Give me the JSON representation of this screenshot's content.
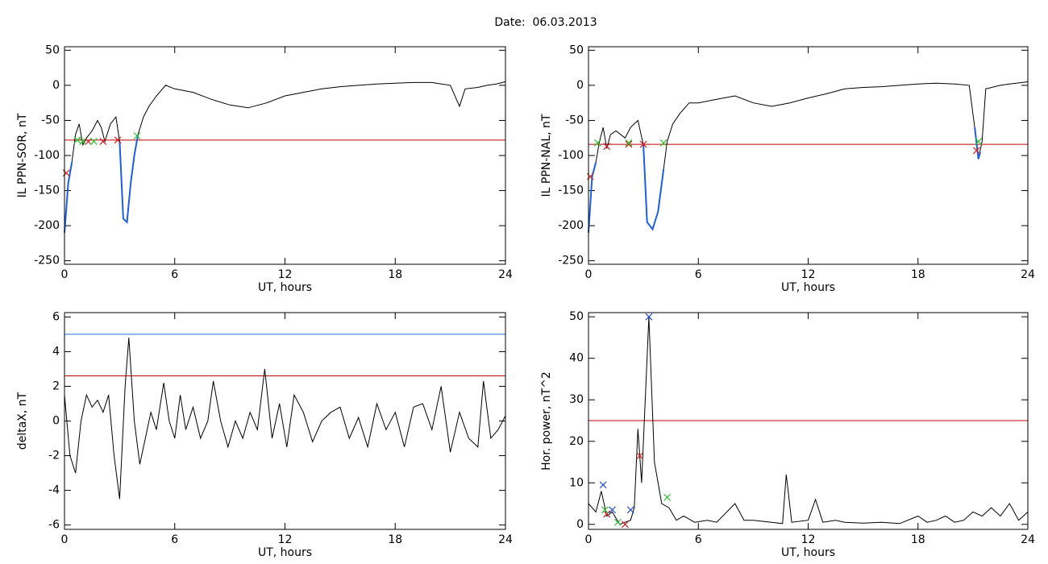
{
  "title": "Date:  06.03.2013",
  "chart_data": [
    {
      "type": "line",
      "xlabel": "UT, hours",
      "ylabel": "IL PPN-SOR, nT",
      "xlim": [
        0,
        24
      ],
      "xticks": [
        0,
        6,
        12,
        18,
        24
      ],
      "ylim": [
        -255,
        55
      ],
      "yticks": [
        -250,
        -200,
        -150,
        -100,
        -50,
        0,
        50
      ],
      "hlines": [
        {
          "value": -78,
          "color": "#c00000"
        }
      ],
      "series": [
        {
          "style": "line",
          "color": "#000000",
          "x": [
            0,
            0.2,
            0.4,
            0.6,
            0.8,
            1.0,
            1.2,
            1.5,
            1.8,
            2.0,
            2.2,
            2.5,
            2.8,
            3.0,
            3.2,
            3.4,
            3.6,
            3.8,
            4.0,
            4.3,
            4.6,
            5.0,
            5.5,
            6,
            7,
            8,
            9,
            10,
            11,
            12,
            13,
            14,
            15,
            16,
            17,
            18,
            19,
            20,
            21,
            21.5,
            21.8,
            22.5,
            23,
            23.5,
            24
          ],
          "values": [
            -210,
            -140,
            -110,
            -70,
            -55,
            -85,
            -75,
            -65,
            -50,
            -60,
            -80,
            -55,
            -45,
            -80,
            -190,
            -195,
            -140,
            -100,
            -70,
            -45,
            -30,
            -15,
            0,
            -5,
            -10,
            -20,
            -28,
            -32,
            -25,
            -15,
            -10,
            -5,
            -2,
            0,
            2,
            3,
            4,
            4,
            0,
            -30,
            -5,
            -3,
            0,
            2,
            5
          ]
        },
        {
          "style": "line",
          "color": "#1f5fd0",
          "x": [
            0,
            0.2,
            0.4,
            null,
            3.0,
            3.2,
            3.4,
            3.6,
            3.8,
            4.0
          ],
          "values": [
            -210,
            -140,
            -110,
            null,
            -80,
            -190,
            -195,
            -140,
            -100,
            -70
          ]
        },
        {
          "style": "marker",
          "color": "#d02020",
          "x": [
            0.1,
            1.3,
            2.1,
            2.9
          ],
          "values": [
            -125,
            -80,
            -80,
            -78
          ]
        },
        {
          "style": "marker",
          "color": "#30c030",
          "x": [
            0.7,
            1.0,
            1.6,
            3.95
          ],
          "values": [
            -78,
            -80,
            -80,
            -72
          ]
        }
      ]
    },
    {
      "type": "line",
      "xlabel": "UT, hours",
      "ylabel": "IL PPN-NAL, nT",
      "xlim": [
        0,
        24
      ],
      "xticks": [
        0,
        6,
        12,
        18,
        24
      ],
      "ylim": [
        -255,
        55
      ],
      "yticks": [
        -250,
        -200,
        -150,
        -100,
        -50,
        0,
        50
      ],
      "hlines": [
        {
          "value": -84,
          "color": "#c00000"
        }
      ],
      "series": [
        {
          "style": "line",
          "color": "#000000",
          "x": [
            0,
            0.2,
            0.4,
            0.6,
            0.8,
            1.0,
            1.2,
            1.5,
            2.0,
            2.3,
            2.7,
            3.0,
            3.2,
            3.5,
            3.8,
            4.1,
            4.3,
            4.6,
            5,
            5.5,
            6,
            7,
            8,
            9,
            10,
            11,
            12,
            13,
            14,
            15,
            16,
            17,
            18,
            19,
            20,
            20.8,
            21.1,
            21.3,
            21.5,
            21.7,
            22.5,
            23,
            24
          ],
          "values": [
            -210,
            -130,
            -110,
            -80,
            -60,
            -90,
            -70,
            -65,
            -75,
            -60,
            -50,
            -85,
            -195,
            -205,
            -180,
            -120,
            -80,
            -55,
            -40,
            -25,
            -25,
            -20,
            -15,
            -25,
            -30,
            -25,
            -18,
            -12,
            -5,
            -3,
            -2,
            0,
            2,
            3,
            2,
            0,
            -60,
            -105,
            -80,
            -5,
            0,
            2,
            5
          ]
        },
        {
          "style": "line",
          "color": "#1f5fd0",
          "x": [
            0,
            0.2,
            0.4,
            null,
            3.0,
            3.2,
            3.5,
            3.8,
            4.1,
            null,
            21.1,
            21.3,
            21.4
          ],
          "values": [
            -210,
            -130,
            -110,
            null,
            -85,
            -195,
            -205,
            -180,
            -120,
            null,
            -60,
            -105,
            -95
          ]
        },
        {
          "style": "marker",
          "color": "#d02020",
          "x": [
            0.1,
            1.0,
            2.2,
            3.0,
            21.2
          ],
          "values": [
            -130,
            -87,
            -84,
            -84,
            -93
          ]
        },
        {
          "style": "marker",
          "color": "#30c030",
          "x": [
            0.5,
            2.2,
            4.1,
            21.3
          ],
          "values": [
            -82,
            -82,
            -82,
            -80
          ]
        }
      ]
    },
    {
      "type": "line",
      "xlabel": "UT, hours",
      "ylabel": "deltaX, nT",
      "xlim": [
        0,
        24
      ],
      "xticks": [
        0,
        6,
        12,
        18,
        24
      ],
      "ylim": [
        -6.25,
        6.25
      ],
      "yticks": [
        -6,
        -4,
        -2,
        0,
        2,
        4,
        6
      ],
      "hlines": [
        {
          "value": 5.0,
          "color": "#1f6fd0"
        },
        {
          "value": 2.6,
          "color": "#c00000"
        }
      ],
      "series": [
        {
          "style": "line",
          "color": "#000000",
          "x": [
            0,
            0.3,
            0.6,
            0.9,
            1.2,
            1.5,
            1.8,
            2.1,
            2.4,
            2.7,
            3.0,
            3.3,
            3.5,
            3.8,
            4.1,
            4.4,
            4.7,
            5.0,
            5.4,
            5.7,
            6,
            6.3,
            6.6,
            7,
            7.4,
            7.8,
            8.1,
            8.5,
            8.9,
            9.3,
            9.7,
            10.1,
            10.5,
            10.9,
            11.3,
            11.7,
            12.1,
            12.5,
            13,
            13.5,
            14,
            14.5,
            15,
            15.5,
            16,
            16.5,
            17,
            17.5,
            18,
            18.5,
            19,
            19.5,
            20,
            20.5,
            21,
            21.5,
            22,
            22.5,
            22.8,
            23.2,
            23.6,
            24
          ],
          "values": [
            1.5,
            -2,
            -3,
            0,
            1.5,
            0.8,
            1.2,
            0.5,
            1.5,
            -2,
            -4.5,
            2,
            4.8,
            0,
            -2.5,
            -1,
            0.5,
            -0.5,
            2.2,
            0,
            -1,
            1.5,
            -0.5,
            0.8,
            -1,
            0,
            2.3,
            0,
            -1.5,
            0,
            -1,
            0.5,
            -0.5,
            3,
            -1,
            1,
            -1.5,
            1.5,
            0.5,
            -1.2,
            0,
            0.5,
            0.8,
            -1,
            0.2,
            -1.5,
            1,
            -0.5,
            0.5,
            -1.5,
            0.8,
            1,
            -0.5,
            2,
            -1.8,
            0.5,
            -1,
            -1.5,
            2.3,
            -1,
            -0.5,
            0.3
          ]
        }
      ]
    },
    {
      "type": "line",
      "xlabel": "UT, hours",
      "ylabel": "Hor. power, nT^2",
      "xlim": [
        0,
        24
      ],
      "xticks": [
        0,
        6,
        12,
        18,
        24
      ],
      "ylim": [
        -1.2,
        51
      ],
      "yticks": [
        0,
        10,
        20,
        30,
        40,
        50
      ],
      "hlines": [
        {
          "value": 25,
          "color": "#c00000"
        }
      ],
      "series": [
        {
          "style": "line",
          "color": "#000000",
          "x": [
            0,
            0.4,
            0.7,
            1.0,
            1.3,
            1.7,
            2.0,
            2.3,
            2.5,
            2.7,
            2.9,
            3.1,
            3.3,
            3.6,
            4.0,
            4.4,
            4.8,
            5.2,
            5.8,
            6.5,
            7,
            8,
            8.5,
            9,
            10,
            10.6,
            10.8,
            11.1,
            12,
            12.4,
            12.8,
            13.5,
            14,
            15,
            16,
            17,
            18,
            18.5,
            19,
            19.5,
            20,
            20.5,
            21,
            21.5,
            22,
            22.5,
            23,
            23.5,
            24
          ],
          "values": [
            5,
            3,
            8,
            2,
            3,
            0,
            0.5,
            1,
            4,
            23,
            10,
            30,
            50,
            15,
            5,
            4,
            1,
            2,
            0.5,
            1,
            0.5,
            5,
            1,
            1,
            0.5,
            0.2,
            12,
            0.5,
            1,
            6,
            0.5,
            1,
            0.5,
            0.3,
            0.5,
            0.2,
            2,
            0.5,
            1,
            2,
            0.5,
            1,
            3,
            2,
            4,
            2,
            5,
            1,
            3
          ]
        },
        {
          "style": "marker",
          "color": "#2050d0",
          "x": [
            0.8,
            1.3,
            2.3,
            3.3
          ],
          "values": [
            9.5,
            3.5,
            3.5,
            50
          ]
        },
        {
          "style": "marker",
          "color": "#d02020",
          "x": [
            1.0,
            2.0,
            2.8
          ],
          "values": [
            2.5,
            0,
            16.5
          ]
        },
        {
          "style": "marker",
          "color": "#30c030",
          "x": [
            0.9,
            1.6,
            4.3
          ],
          "values": [
            3.5,
            0.5,
            6.5
          ]
        }
      ]
    }
  ]
}
